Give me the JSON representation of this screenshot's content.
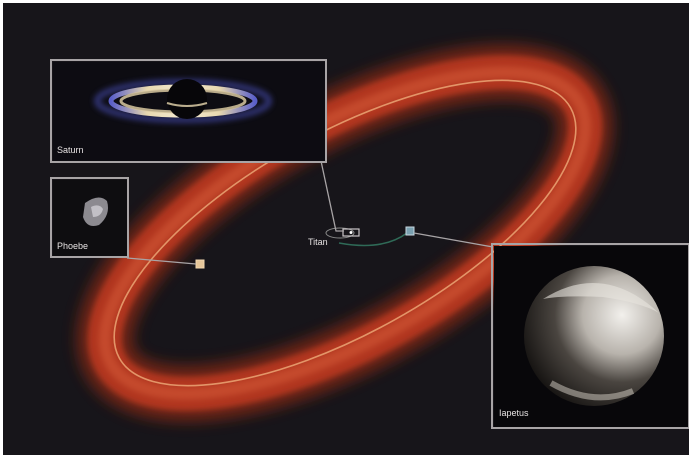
{
  "labels": {
    "saturn": "Saturn",
    "phoebe": "Phoebe",
    "titan": "Titan",
    "iapetus": "Iapetus"
  },
  "colors": {
    "background": "#17151a",
    "ring": "#c23a22",
    "phoebe_orbit": "#e8a070",
    "frame": "#a8a4a6",
    "iapetus_orbit": "#2f6a57"
  }
}
